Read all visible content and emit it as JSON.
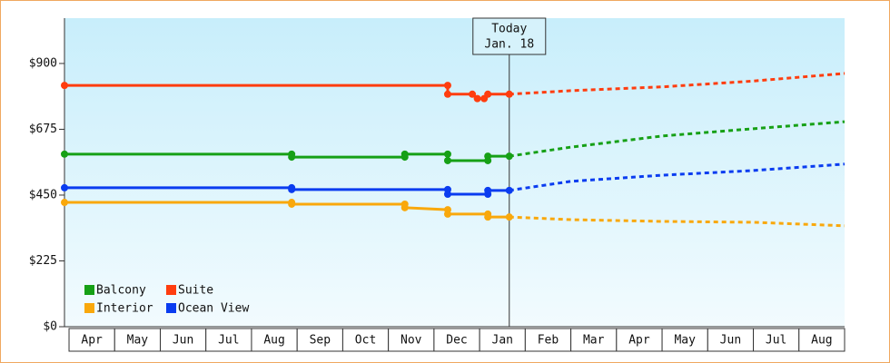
{
  "chart_data": {
    "type": "line",
    "categories": [
      "Apr",
      "May",
      "Jun",
      "Jul",
      "Aug",
      "Sep",
      "Oct",
      "Nov",
      "Dec",
      "Jan",
      "Feb",
      "Mar",
      "Apr",
      "May",
      "Jun",
      "Jul",
      "Aug"
    ],
    "xlim": [
      -0.1,
      17
    ],
    "ylim": [
      0,
      1055
    ],
    "yticks": [
      {
        "value": 0,
        "label": "$0"
      },
      {
        "value": 225,
        "label": "$225"
      },
      {
        "value": 450,
        "label": "$450"
      },
      {
        "value": 675,
        "label": "$675"
      },
      {
        "value": 900,
        "label": "$900"
      }
    ],
    "today": {
      "x": 9.65,
      "label": [
        "Today",
        "Jan. 18"
      ]
    },
    "legend": "lower left",
    "series": [
      {
        "name": "Balcony",
        "color": "#16a016",
        "x": [
          -0.1,
          4.88,
          4.88,
          7.36,
          7.36,
          8.3,
          8.3,
          9.18,
          9.18,
          9.65
        ],
        "values": [
          590,
          590,
          580,
          580,
          590,
          590,
          568,
          568,
          583,
          583
        ],
        "forecast_x": [
          9.65,
          11,
          13,
          15,
          17
        ],
        "forecast_values": [
          583,
          614,
          652,
          677,
          701
        ]
      },
      {
        "name": "Suite",
        "color": "#ff3d0f",
        "x": [
          -0.1,
          8.3,
          8.3,
          8.84,
          8.95,
          9.1,
          9.18,
          9.65
        ],
        "values": [
          825,
          825,
          795,
          795,
          780,
          780,
          795,
          795
        ],
        "forecast_x": [
          9.65,
          11,
          13,
          15,
          17
        ],
        "forecast_values": [
          795,
          807,
          820,
          840,
          866
        ]
      },
      {
        "name": "Interior",
        "color": "#f9a80c",
        "x": [
          -0.1,
          4.88,
          4.88,
          7.36,
          7.36,
          8.3,
          8.3,
          9.18,
          9.18,
          9.65
        ],
        "values": [
          425,
          425,
          419,
          419,
          407,
          400,
          385,
          385,
          375,
          375
        ],
        "forecast_x": [
          9.65,
          11,
          13,
          15,
          17
        ],
        "forecast_values": [
          375,
          366,
          360,
          357,
          345
        ]
      },
      {
        "name": "Ocean View",
        "color": "#0a3cf0",
        "x": [
          -0.1,
          4.88,
          4.88,
          8.3,
          8.3,
          9.18,
          9.18,
          9.65
        ],
        "values": [
          475,
          475,
          469,
          469,
          453,
          453,
          466,
          466
        ],
        "forecast_x": [
          9.65,
          11,
          13,
          15,
          17
        ],
        "forecast_values": [
          466,
          497,
          518,
          534,
          556
        ]
      }
    ]
  }
}
